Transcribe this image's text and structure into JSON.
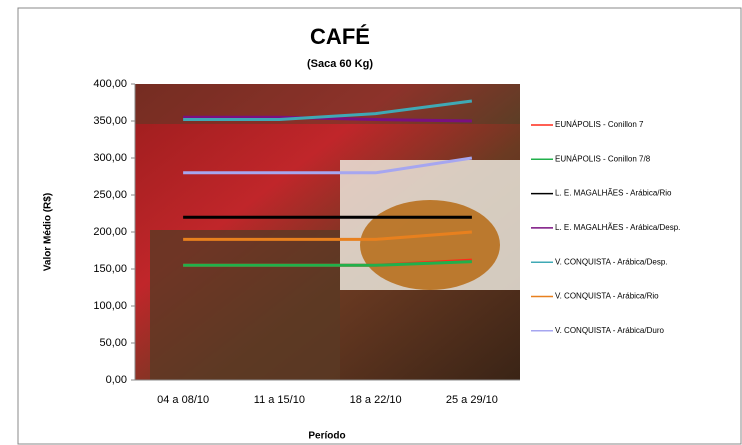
{
  "chart_data": {
    "type": "line",
    "title": "CAFÉ",
    "subtitle": "(Saca 60 Kg)",
    "x_label": "Período",
    "y_label": "Valor Médio (R$)",
    "categories": [
      "04 a 08/10",
      "11 a 15/10",
      "18 a 22/10",
      "25 a 29/10"
    ],
    "series": [
      {
        "name": "EUNÁPOLIS - Conillon 7",
        "color": "#ff2a1a",
        "values": [
          155,
          155,
          155,
          162
        ]
      },
      {
        "name": "EUNÁPOLIS - Conillon 7/8",
        "color": "#21b04b",
        "values": [
          155,
          155,
          155,
          160
        ]
      },
      {
        "name": "L. E. MAGALHÃES - Arábica/Rio",
        "color": "#000000",
        "values": [
          220,
          220,
          220,
          220
        ]
      },
      {
        "name": "L. E. MAGALHÃES - Arábica/Desp.",
        "color": "#7a1080",
        "values": [
          355,
          355,
          352,
          350
        ]
      },
      {
        "name": "V. CONQUISTA - Arábica/Desp.",
        "color": "#3fa9b5",
        "values": [
          352,
          352,
          360,
          377
        ]
      },
      {
        "name": "V. CONQUISTA - Arábica/Rio",
        "color": "#e8801e",
        "values": [
          190,
          190,
          190,
          200
        ]
      },
      {
        "name": "V. CONQUISTA - Arábica/Duro",
        "color": "#a6a6f0",
        "values": [
          280,
          280,
          280,
          300
        ]
      }
    ],
    "ylim": [
      0,
      400
    ],
    "yticks": [
      {
        "value": 0,
        "label": "0,00"
      },
      {
        "value": 50,
        "label": "50,00"
      },
      {
        "value": 100,
        "label": "100,00"
      },
      {
        "value": 150,
        "label": "150,00"
      },
      {
        "value": 200,
        "label": "200,00"
      },
      {
        "value": 250,
        "label": "250,00"
      },
      {
        "value": 300,
        "label": "300,00"
      },
      {
        "value": 350,
        "label": "350,00"
      },
      {
        "value": 400,
        "label": "400,00"
      }
    ],
    "legend": "right"
  }
}
